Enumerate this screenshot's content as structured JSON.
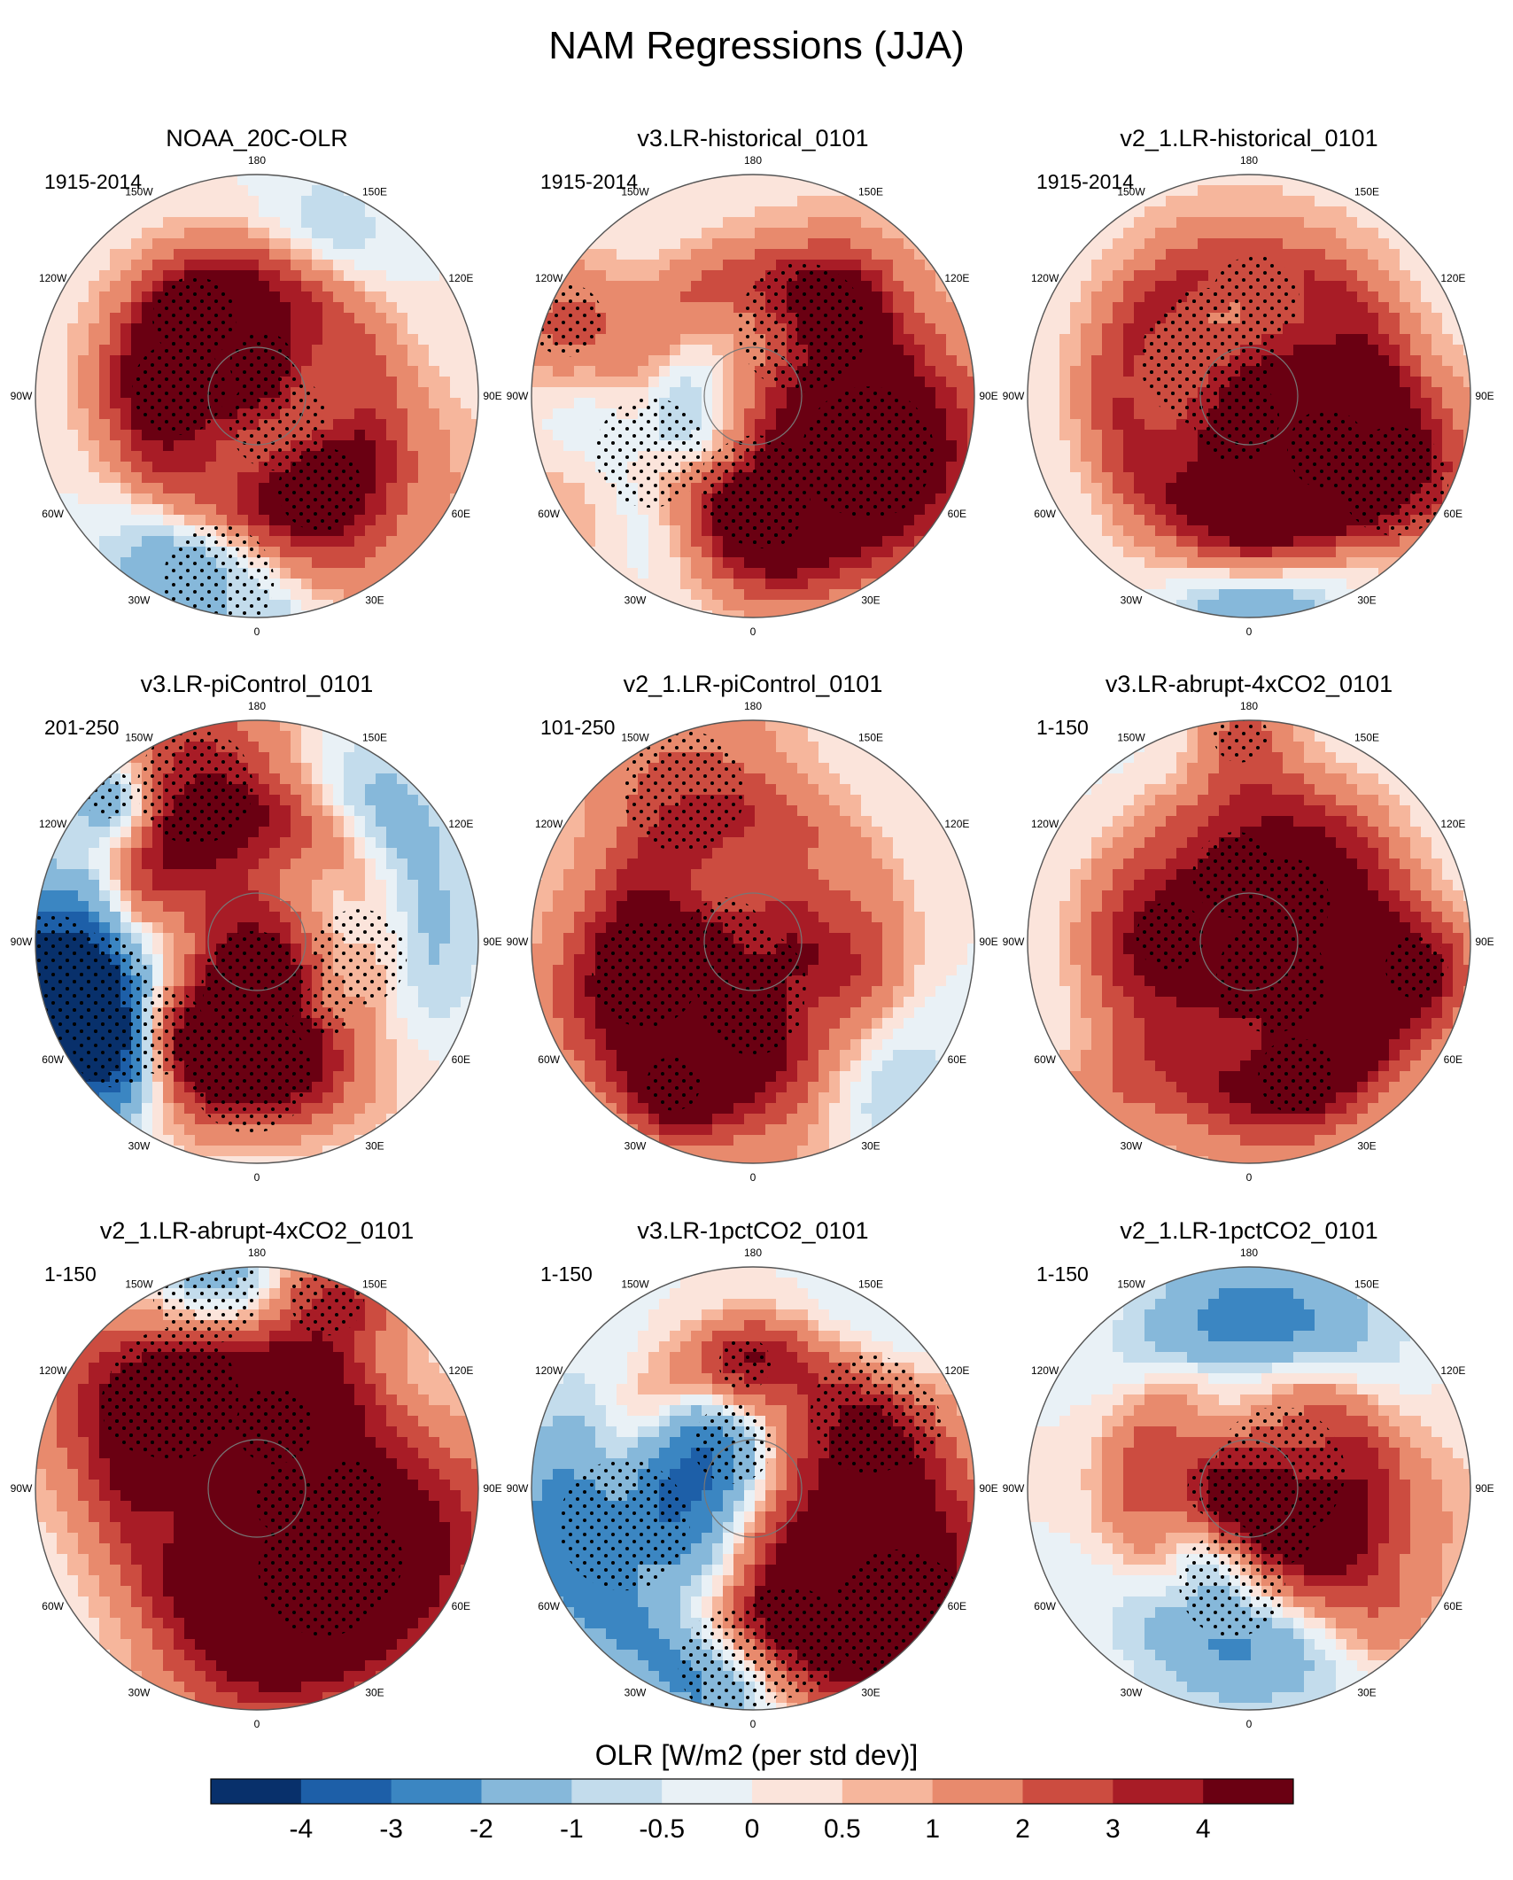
{
  "figure": {
    "title": "NAM Regressions (JJA)",
    "colorbar_label": "OLR [W/m2 (per std dev)]"
  },
  "longitude_labels": [
    "180",
    "150E",
    "120E",
    "90E",
    "60E",
    "30E",
    "0",
    "30W",
    "60W",
    "90W",
    "120W",
    "150W"
  ],
  "panels": [
    {
      "title": "NOAA_20C-OLR",
      "period": "1915-2014",
      "seed": 11
    },
    {
      "title": "v3.LR-historical_0101",
      "period": "1915-2014",
      "seed": 23
    },
    {
      "title": "v2_1.LR-historical_0101",
      "period": "1915-2014",
      "seed": 37
    },
    {
      "title": "v3.LR-piControl_0101",
      "period": "201-250",
      "seed": 41
    },
    {
      "title": "v2_1.LR-piControl_0101",
      "period": "101-250",
      "seed": 53
    },
    {
      "title": "v3.LR-abrupt-4xCO2_0101",
      "period": "1-150",
      "seed": 67
    },
    {
      "title": "v2_1.LR-abrupt-4xCO2_0101",
      "period": "1-150",
      "seed": 71
    },
    {
      "title": "v3.LR-1pctCO2_0101",
      "period": "1-150",
      "seed": 83
    },
    {
      "title": "v2_1.LR-1pctCO2_0101",
      "period": "1-150",
      "seed": 97
    }
  ],
  "chart_data": {
    "type": "heatmap",
    "projection": "north-polar-stereographic",
    "variable": "OLR",
    "units": "W/m2 (per std dev)",
    "colorbar": {
      "levels": [
        -4,
        -3,
        -2,
        -1,
        -0.5,
        0,
        0.5,
        1,
        2,
        3,
        4
      ],
      "tick_labels": [
        "-4",
        "-3",
        "-2",
        "-1",
        "-0.5",
        "0",
        "0.5",
        "1",
        "2",
        "3",
        "4"
      ],
      "colors": [
        "#08306b",
        "#1d5fa8",
        "#3b86c2",
        "#86b8da",
        "#c3dcec",
        "#e9f1f6",
        "#fbe4db",
        "#f6b69c",
        "#e88a6d",
        "#cc4c40",
        "#a81c26",
        "#6a0012"
      ]
    }
  }
}
